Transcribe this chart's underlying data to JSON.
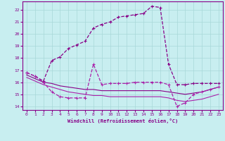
{
  "bg_color": "#c8eef0",
  "line_color_dark": "#880088",
  "line_color_med": "#aa22aa",
  "grid_color": "#a8d8d8",
  "xlabel": "Windchill (Refroidissement éolien,°C)",
  "xlim": [
    -0.5,
    23.5
  ],
  "ylim": [
    13.7,
    22.7
  ],
  "yticks": [
    14,
    15,
    16,
    17,
    18,
    19,
    20,
    21,
    22
  ],
  "xticks": [
    0,
    1,
    2,
    3,
    4,
    5,
    6,
    7,
    8,
    9,
    10,
    11,
    12,
    13,
    14,
    15,
    16,
    17,
    18,
    19,
    20,
    21,
    22,
    23
  ],
  "curve_main_x": [
    0,
    1,
    2,
    3,
    4,
    5,
    6,
    7,
    8,
    9,
    10,
    11,
    12,
    13,
    14,
    15,
    16,
    17,
    18,
    19,
    20,
    21,
    22,
    23
  ],
  "curve_main_y": [
    16.8,
    16.5,
    16.1,
    17.8,
    18.1,
    18.8,
    19.1,
    19.4,
    20.5,
    20.8,
    21.0,
    21.4,
    21.5,
    21.6,
    21.7,
    22.3,
    22.2,
    17.5,
    15.8,
    15.8,
    15.9,
    15.9,
    15.9,
    15.9
  ],
  "curve_jagged_x": [
    0,
    1,
    2,
    3,
    4,
    5,
    6,
    7,
    8,
    9,
    10,
    11,
    12,
    13,
    14,
    15,
    16,
    17,
    18,
    19,
    20,
    21,
    22,
    23
  ],
  "curve_jagged_y": [
    16.8,
    16.5,
    16.0,
    15.2,
    14.8,
    14.7,
    14.7,
    14.7,
    17.5,
    15.8,
    15.9,
    15.9,
    15.9,
    16.0,
    16.0,
    16.0,
    16.0,
    15.8,
    14.0,
    14.3,
    15.0,
    15.2,
    15.4,
    15.6
  ],
  "curve_flat1_x": [
    0,
    1,
    2,
    3,
    4,
    5,
    6,
    7,
    8,
    9,
    10,
    11,
    12,
    13,
    14,
    15,
    16,
    17,
    18,
    19,
    20,
    21,
    22,
    23
  ],
  "curve_flat1_y": [
    16.6,
    16.3,
    16.0,
    15.9,
    15.7,
    15.6,
    15.5,
    15.4,
    15.4,
    15.3,
    15.3,
    15.3,
    15.3,
    15.3,
    15.3,
    15.3,
    15.3,
    15.2,
    15.1,
    15.0,
    15.1,
    15.2,
    15.4,
    15.6
  ],
  "curve_flat2_x": [
    0,
    1,
    2,
    3,
    4,
    5,
    6,
    7,
    8,
    9,
    10,
    11,
    12,
    13,
    14,
    15,
    16,
    17,
    18,
    19,
    20,
    21,
    22,
    23
  ],
  "curve_flat2_y": [
    16.4,
    16.1,
    15.8,
    15.6,
    15.4,
    15.2,
    15.1,
    15.0,
    14.9,
    14.9,
    14.8,
    14.8,
    14.8,
    14.8,
    14.8,
    14.8,
    14.8,
    14.7,
    14.5,
    14.4,
    14.5,
    14.6,
    14.8,
    15.0
  ]
}
